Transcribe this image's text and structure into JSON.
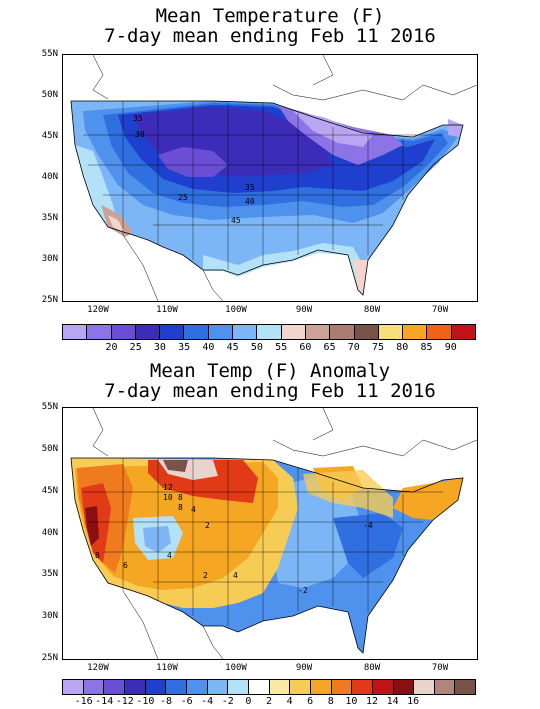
{
  "top_map": {
    "title_line1": "Mean Temperature (F)",
    "title_line2": "7-day mean ending Feb 11 2016",
    "lat_labels": [
      "55N",
      "50N",
      "45N",
      "40N",
      "35N",
      "30N",
      "25N"
    ],
    "lon_labels": [
      "120W",
      "110W",
      "100W",
      "90W",
      "80W",
      "70W"
    ],
    "contour_labels": [
      "35",
      "30",
      "25",
      "35",
      "40",
      "45"
    ],
    "colorbar": {
      "colors": [
        "#b9a6f2",
        "#8c73e6",
        "#6a4fd6",
        "#3c2cb8",
        "#1f3fcf",
        "#2f6fe0",
        "#4f92ee",
        "#7db6f6",
        "#b3e2f8",
        "#f2d6ce",
        "#caa296",
        "#a87e73",
        "#7a5348",
        "#f7e07a",
        "#f5a623",
        "#f06218",
        "#c2121a"
      ],
      "labels": [
        "20",
        "25",
        "30",
        "35",
        "40",
        "45",
        "50",
        "55",
        "60",
        "65",
        "70",
        "75",
        "80",
        "85",
        "90"
      ]
    }
  },
  "bottom_map": {
    "title_line1": "Mean Temp (F) Anomaly",
    "title_line2": "7-day mean ending Feb 11 2016",
    "lat_labels": [
      "55N",
      "50N",
      "45N",
      "40N",
      "35N",
      "30N",
      "25N"
    ],
    "lon_labels": [
      "120W",
      "110W",
      "100W",
      "90W",
      "80W",
      "70W"
    ],
    "contour_labels": [
      "12",
      "10",
      "8",
      "8",
      "4",
      "2",
      "4",
      "8",
      "6",
      "4",
      "2",
      "-4",
      "-2"
    ],
    "colorbar": {
      "colors": [
        "#b9a6f2",
        "#8c73e6",
        "#6a4fd6",
        "#3c2cb8",
        "#1f3fcf",
        "#2f6fe0",
        "#4f92ee",
        "#7db6f6",
        "#b3e2f8",
        "#ffffff",
        "#fbe8a6",
        "#f7cc55",
        "#f5a623",
        "#f07a1e",
        "#e03a16",
        "#c2121a",
        "#8b0f12",
        "#e8d4cc",
        "#b0867c",
        "#7a5348"
      ],
      "labels": [
        "-16",
        "-14",
        "-12",
        "-10",
        "-8",
        "-6",
        "-4",
        "-2",
        "0",
        "2",
        "4",
        "6",
        "8",
        "10",
        "12",
        "14",
        "16"
      ]
    }
  }
}
